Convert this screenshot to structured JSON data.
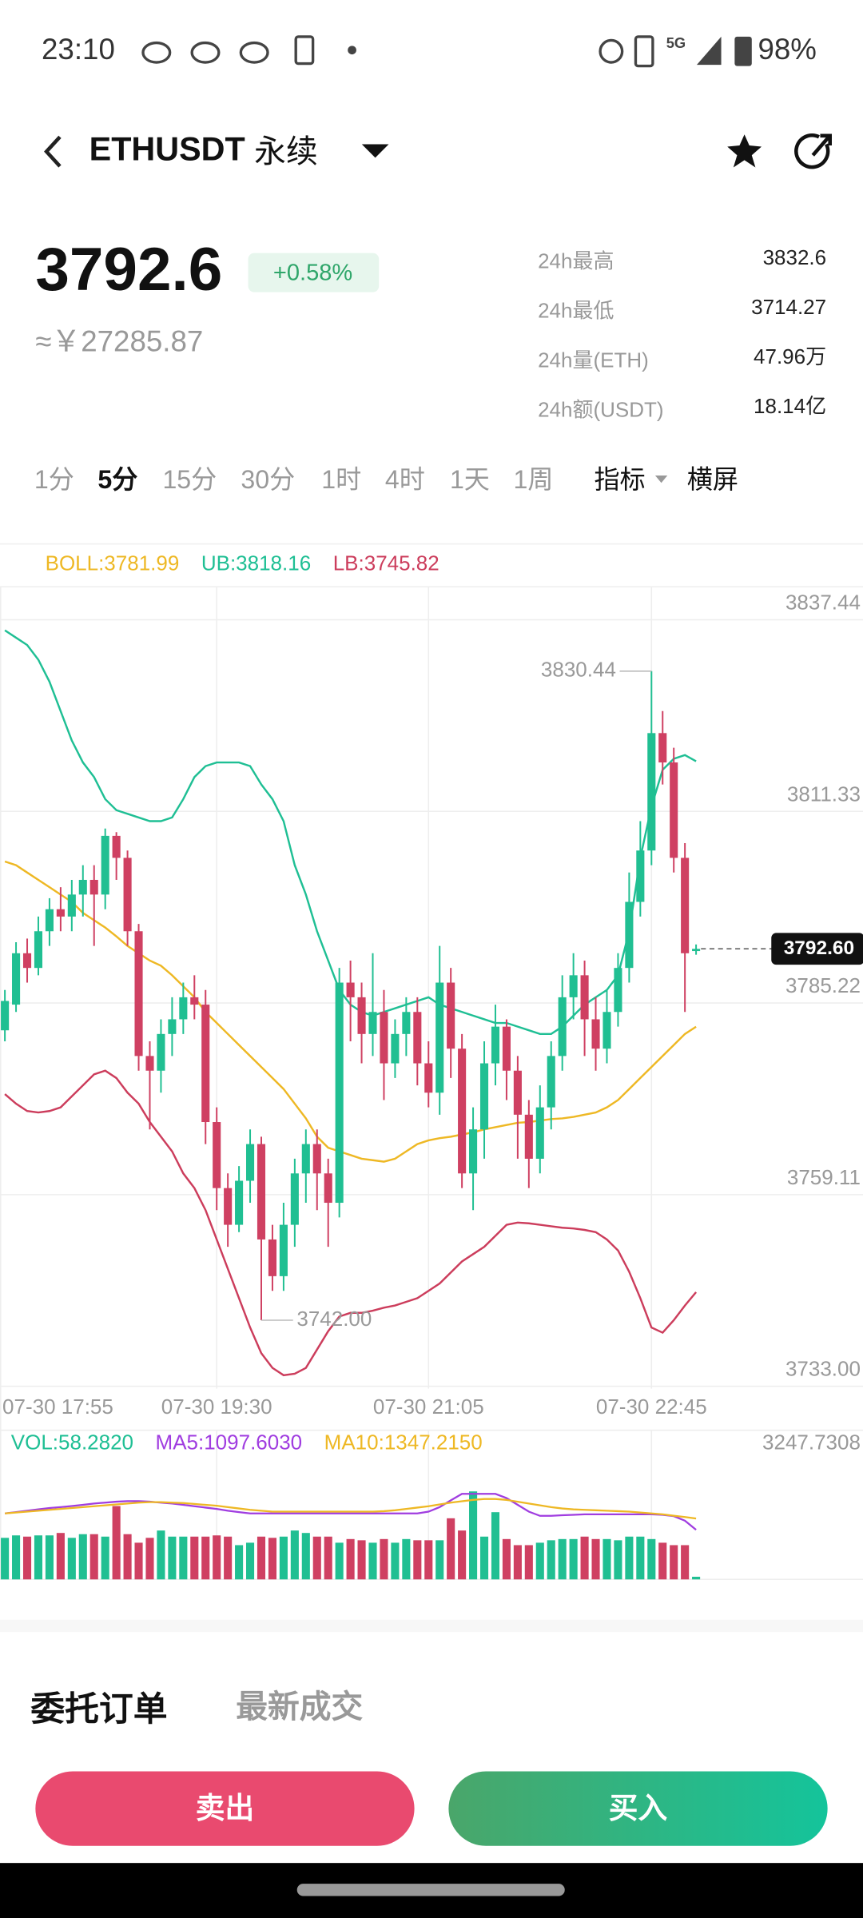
{
  "status_bar": {
    "time": "23:10",
    "network": "5G",
    "battery": "98%"
  },
  "header": {
    "symbol": "ETHUSDT",
    "contract": "永续"
  },
  "ticker": {
    "price": "3792.6",
    "change": "+0.58%",
    "fiat": "≈￥27285.87",
    "stats": [
      {
        "label": "24h最高",
        "value": "3832.6"
      },
      {
        "label": "24h最低",
        "value": "3714.27"
      },
      {
        "label": "24h量(ETH)",
        "value": "47.96万"
      },
      {
        "label": "24h额(USDT)",
        "value": "18.14亿"
      }
    ]
  },
  "intervals": {
    "options": [
      "1分",
      "5分",
      "15分",
      "30分",
      "1时",
      "4时",
      "1天",
      "1周"
    ],
    "selected": 1,
    "indicator": "指标",
    "landscape": "横屏"
  },
  "chart_data": {
    "type": "candlestick",
    "categories": [
      "07-30 17:55",
      null,
      null,
      null,
      null,
      null,
      null,
      null,
      null,
      null,
      null,
      null,
      null,
      null,
      null,
      null,
      null,
      null,
      null,
      "07-30 19:30",
      null,
      null,
      null,
      null,
      null,
      null,
      null,
      null,
      null,
      null,
      null,
      null,
      null,
      null,
      null,
      null,
      null,
      null,
      "07-30 21:05",
      null,
      null,
      null,
      null,
      null,
      null,
      null,
      null,
      null,
      null,
      null,
      null,
      null,
      null,
      null,
      null,
      null,
      null,
      null,
      "07-30 22:45",
      null,
      null,
      null,
      null
    ],
    "open": [
      3781.5,
      3785,
      3792,
      3790,
      3795,
      3798,
      3797,
      3800,
      3802,
      3800,
      3808,
      3805,
      3795,
      3778,
      3776,
      3781,
      3783,
      3786,
      3785,
      3769,
      3760,
      3755,
      3761,
      3766,
      3753,
      3748,
      3755,
      3762,
      3766,
      3762,
      3758,
      3788,
      3786,
      3781,
      3784,
      3777,
      3781,
      3784,
      3777,
      3773,
      3788,
      3779,
      3762,
      3768,
      3777,
      3782,
      3776,
      3770,
      3764,
      3771,
      3778,
      3786,
      3789,
      3783,
      3779,
      3784,
      3790,
      3799,
      3806,
      3822,
      3818,
      3805,
      3792.3
    ],
    "high": [
      3787,
      3793.5,
      3794,
      3797,
      3799.5,
      3801,
      3802,
      3804,
      3804,
      3809,
      3808.5,
      3806,
      3796,
      3780,
      3783,
      3786,
      3788,
      3789,
      3787,
      3771,
      3762,
      3763,
      3768,
      3767,
      3755,
      3758,
      3764,
      3768,
      3768,
      3764,
      3790,
      3791,
      3788,
      3792,
      3787,
      3783,
      3786,
      3786,
      3780,
      3793,
      3790,
      3781,
      3771,
      3780,
      3785,
      3783,
      3778,
      3772,
      3774,
      3780,
      3789,
      3792,
      3791,
      3786,
      3787,
      3792,
      3803,
      3810,
      3830.44,
      3825,
      3820,
      3807,
      3793.2
    ],
    "low": [
      3780,
      3784,
      3788,
      3789,
      3793,
      3795,
      3795,
      3797,
      3793,
      3798,
      3802,
      3793,
      3776,
      3768,
      3773,
      3778,
      3781,
      3783,
      3766,
      3757,
      3752,
      3754,
      3758,
      3742,
      3746,
      3746,
      3752,
      3758,
      3757,
      3752,
      3756,
      3780,
      3777,
      3778,
      3772,
      3775,
      3778,
      3774,
      3771,
      3770,
      3775,
      3760,
      3757,
      3764,
      3774,
      3772,
      3764,
      3760,
      3762,
      3768,
      3776,
      3783,
      3778,
      3776,
      3777,
      3782,
      3788,
      3797,
      3804,
      3815,
      3803,
      3784,
      3791.8
    ],
    "close": [
      3785.5,
      3792,
      3790,
      3795,
      3798,
      3797,
      3800,
      3802,
      3800,
      3808,
      3805,
      3795,
      3778,
      3776,
      3781,
      3783,
      3786,
      3785,
      3769,
      3760,
      3755,
      3761,
      3766,
      3753,
      3748,
      3755,
      3762,
      3766,
      3762,
      3758,
      3788,
      3786,
      3781,
      3784,
      3777,
      3781,
      3784,
      3777,
      3773,
      3788,
      3779,
      3762,
      3768,
      3777,
      3782,
      3776,
      3770,
      3764,
      3771,
      3778,
      3786,
      3789,
      3783,
      3779,
      3784,
      3790,
      3799,
      3806,
      3822,
      3818,
      3805,
      3792,
      3792.6
    ],
    "up_color": "#20bf92",
    "down_color": "#cf4062",
    "ylim": [
      3733,
      3837.44
    ],
    "yticks": [
      3837.44,
      3811.33,
      3785.22,
      3759.11,
      {
        "value": 3733,
        "label": "3733.00"
      }
    ],
    "grid": true,
    "overlays": [
      {
        "name": "BOLL:3781.99",
        "color": "#eeb824",
        "values": [
          3804.5,
          3804,
          3803,
          3802,
          3801,
          3800,
          3799,
          3797.5,
          3796.5,
          3795.5,
          3794.3,
          3793,
          3792,
          3791,
          3790.3,
          3789,
          3787.5,
          3786,
          3784,
          3782.5,
          3781,
          3779.5,
          3778,
          3776.5,
          3775,
          3773.5,
          3771.5,
          3769.5,
          3767,
          3765.5,
          3765,
          3764.5,
          3764,
          3763.8,
          3763.6,
          3764,
          3765,
          3766,
          3766.5,
          3766.8,
          3767,
          3767.3,
          3767.6,
          3768,
          3768.3,
          3768.6,
          3768.9,
          3769,
          3769.2,
          3769.4,
          3769.5,
          3769.7,
          3770,
          3770.3,
          3771,
          3772,
          3773.5,
          3775,
          3776.5,
          3778,
          3779.5,
          3781,
          3781.99
        ]
      },
      {
        "name": "UB:3818.16",
        "color": "#1fbf94",
        "values": [
          3836,
          3835,
          3834,
          3832,
          3829,
          3825,
          3821,
          3818,
          3816,
          3813,
          3811.5,
          3811,
          3810.5,
          3810,
          3810,
          3810.5,
          3813,
          3816,
          3817.5,
          3818,
          3818,
          3818,
          3817.5,
          3815,
          3813,
          3810,
          3804,
          3800,
          3795,
          3791,
          3787,
          3785,
          3784,
          3783.5,
          3784,
          3784.5,
          3785,
          3785.5,
          3786,
          3785,
          3784.5,
          3784,
          3783.5,
          3783,
          3782.5,
          3782.5,
          3782,
          3781.5,
          3781,
          3781,
          3782,
          3783.5,
          3785,
          3786,
          3787,
          3789,
          3795,
          3805,
          3812,
          3817,
          3818.5,
          3819,
          3818.16
        ]
      },
      {
        "name": "LB:3745.82",
        "color": "#cc3d5c",
        "values": [
          3772.8,
          3771.5,
          3770.5,
          3770.3,
          3770.5,
          3771,
          3772.5,
          3774,
          3775.5,
          3776,
          3775,
          3773,
          3771.5,
          3769,
          3767,
          3765,
          3762,
          3760,
          3757,
          3753,
          3749,
          3745,
          3741,
          3737.5,
          3735.5,
          3734.5,
          3734.7,
          3735.5,
          3738,
          3740.5,
          3742.5,
          3743,
          3743,
          3743.3,
          3743.7,
          3744,
          3744.5,
          3745,
          3746,
          3747,
          3748.5,
          3750,
          3751,
          3752,
          3753.5,
          3755,
          3755.3,
          3755.2,
          3755,
          3754.8,
          3754.6,
          3754.5,
          3754.3,
          3754,
          3753,
          3751.5,
          3748.6,
          3745,
          3741,
          3740.3,
          3742,
          3744,
          3745.82
        ]
      }
    ],
    "max_label": 3830.44,
    "min_label": {
      "value": 3742,
      "label": "3742.00"
    },
    "last_price": {
      "value": 3792.6,
      "label": "3792.60"
    },
    "volume": {
      "name": "VOL:58.2820",
      "color": "#1fbf94",
      "values": [
        920,
        974,
        947,
        974,
        974,
        1028,
        920,
        1001,
        1001,
        947,
        1624,
        1001,
        812,
        920,
        1082,
        947,
        947,
        947,
        947,
        974,
        947,
        758,
        812,
        947,
        920,
        947,
        1082,
        1028,
        947,
        947,
        812,
        893,
        866,
        812,
        893,
        812,
        893,
        866,
        866,
        866,
        1353,
        1082,
        1948,
        947,
        1488,
        893,
        758,
        758,
        812,
        866,
        893,
        893,
        947,
        893,
        893,
        866,
        947,
        947,
        893,
        812,
        758,
        758,
        58.282
      ],
      "ylim": [
        0,
        3247.7308
      ],
      "yticks": [
        3247.7308
      ],
      "series": [
        {
          "name": "MA5:1097.6030",
          "color": "#a03de0",
          "values": [
            1461,
            1490,
            1520,
            1550,
            1580,
            1600,
            1624,
            1650,
            1680,
            1700,
            1720,
            1732,
            1732,
            1720,
            1700,
            1680,
            1650,
            1620,
            1590,
            1560,
            1520,
            1490,
            1461,
            1461,
            1461,
            1461,
            1461,
            1461,
            1461,
            1461,
            1461,
            1461,
            1461,
            1461,
            1461,
            1461,
            1461,
            1461,
            1500,
            1600,
            1750,
            1894,
            1894,
            1894,
            1894,
            1800,
            1650,
            1500,
            1407,
            1407,
            1420,
            1430,
            1440,
            1440,
            1440,
            1440,
            1440,
            1440,
            1440,
            1430,
            1400,
            1300,
            1097.603
          ]
        },
        {
          "name": "MA10:1347.2150",
          "color": "#eeb824",
          "values": [
            1461,
            1480,
            1500,
            1520,
            1540,
            1560,
            1580,
            1600,
            1620,
            1640,
            1660,
            1680,
            1700,
            1710,
            1710,
            1700,
            1690,
            1670,
            1650,
            1630,
            1600,
            1570,
            1540,
            1520,
            1500,
            1500,
            1500,
            1500,
            1500,
            1500,
            1500,
            1500,
            1500,
            1500,
            1510,
            1530,
            1560,
            1590,
            1620,
            1660,
            1700,
            1730,
            1760,
            1780,
            1780,
            1760,
            1720,
            1680,
            1640,
            1600,
            1570,
            1550,
            1540,
            1530,
            1520,
            1510,
            1500,
            1480,
            1460,
            1440,
            1410,
            1380,
            1347.215
          ]
        }
      ]
    }
  },
  "tabs": [
    "委托订单",
    "最新成交"
  ],
  "buttons": {
    "sell": "卖出",
    "buy": "买入"
  }
}
